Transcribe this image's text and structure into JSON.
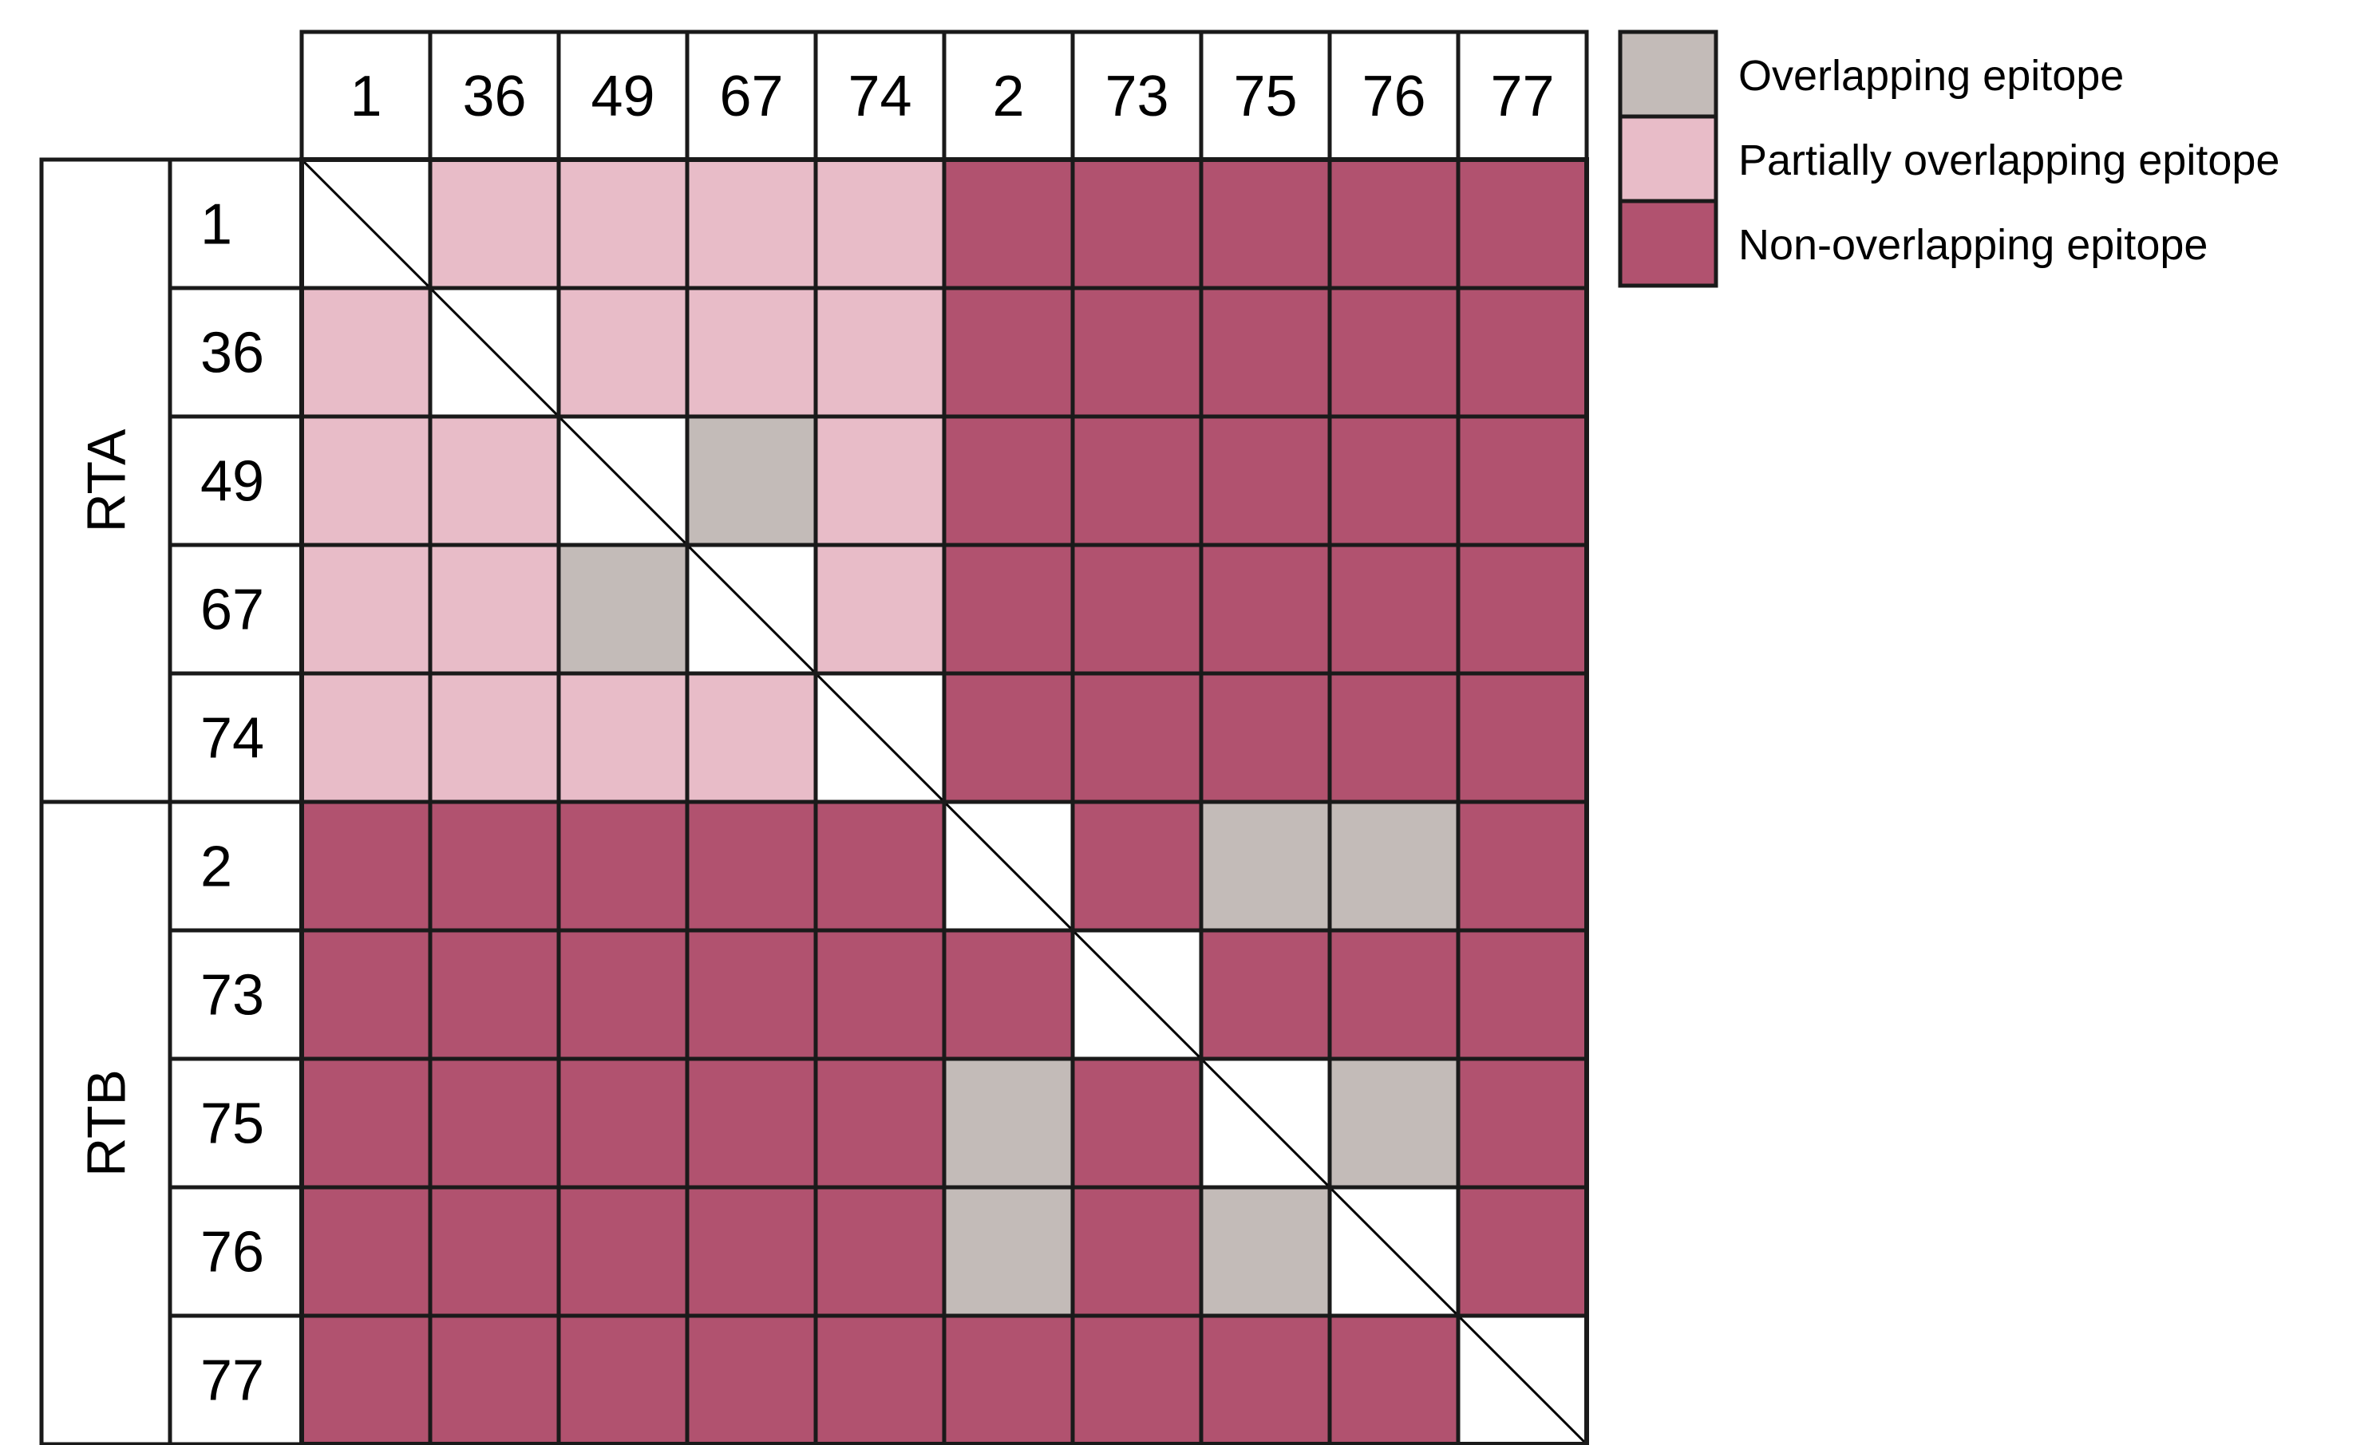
{
  "chart_data": {
    "type": "heatmap",
    "title": "",
    "xlabel": "",
    "ylabel": "",
    "columns": [
      "1",
      "36",
      "49",
      "67",
      "74",
      "2",
      "73",
      "75",
      "76",
      "77"
    ],
    "rows": [
      "1",
      "36",
      "49",
      "67",
      "74",
      "2",
      "73",
      "75",
      "76",
      "77"
    ],
    "row_groups": [
      {
        "label": "RTA",
        "rows": [
          "1",
          "36",
          "49",
          "67",
          "74"
        ]
      },
      {
        "label": "RTB",
        "rows": [
          "2",
          "73",
          "75",
          "76",
          "77"
        ]
      }
    ],
    "categories": [
      {
        "key": "O",
        "label": "Overlapping epitope",
        "color": "#c3bbb8"
      },
      {
        "key": "P",
        "label": "Partially overlapping epitope",
        "color": "#e8bcc8"
      },
      {
        "key": "N",
        "label": "Non-overlapping epitope",
        "color": "#b1526f"
      }
    ],
    "diagonal_color": "#ffffff",
    "matrix": [
      [
        "-",
        "P",
        "P",
        "P",
        "P",
        "N",
        "N",
        "N",
        "N",
        "N"
      ],
      [
        "P",
        "-",
        "P",
        "P",
        "P",
        "N",
        "N",
        "N",
        "N",
        "N"
      ],
      [
        "P",
        "P",
        "-",
        "O",
        "P",
        "N",
        "N",
        "N",
        "N",
        "N"
      ],
      [
        "P",
        "P",
        "O",
        "-",
        "P",
        "N",
        "N",
        "N",
        "N",
        "N"
      ],
      [
        "P",
        "P",
        "P",
        "P",
        "-",
        "N",
        "N",
        "N",
        "N",
        "N"
      ],
      [
        "N",
        "N",
        "N",
        "N",
        "N",
        "-",
        "N",
        "O",
        "O",
        "N"
      ],
      [
        "N",
        "N",
        "N",
        "N",
        "N",
        "N",
        "-",
        "N",
        "N",
        "N"
      ],
      [
        "N",
        "N",
        "N",
        "N",
        "N",
        "O",
        "N",
        "-",
        "O",
        "N"
      ],
      [
        "N",
        "N",
        "N",
        "N",
        "N",
        "O",
        "N",
        "O",
        "-",
        "N"
      ],
      [
        "N",
        "N",
        "N",
        "N",
        "N",
        "N",
        "N",
        "N",
        "N",
        "-"
      ]
    ],
    "legend_position": "top-right",
    "grid": true
  }
}
